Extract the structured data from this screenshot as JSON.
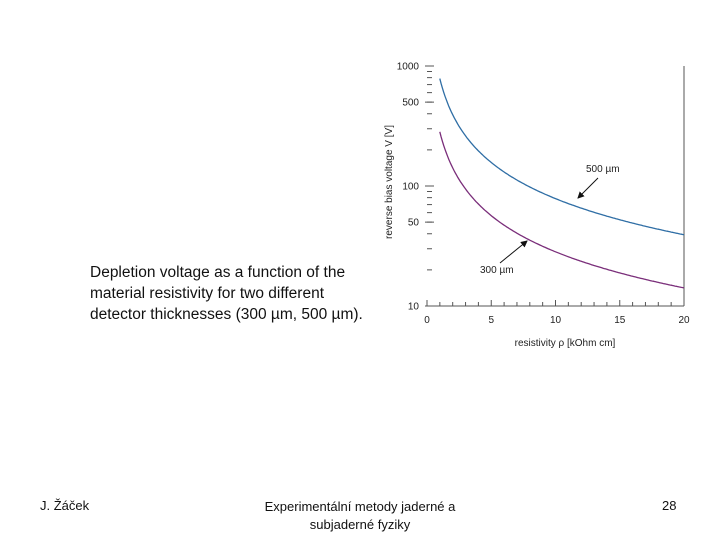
{
  "caption": {
    "line1": "Depletion voltage as a function of the",
    "line2": "material resistivity for two different",
    "line3": "detector thicknesses (300 µm, 500 µm)."
  },
  "footer": {
    "author": "J. Žáček",
    "title_line1": "Experimentální metody jaderné a",
    "title_line2": "subjaderné fyziky",
    "page": "28"
  },
  "chart_data": {
    "type": "line",
    "title": "",
    "xlabel": "resistivity ρ [kOhm cm]",
    "ylabel": "reverse bias voltage V [V]",
    "xlim": [
      0,
      20
    ],
    "ylim": [
      10,
      1000
    ],
    "yscale": "log",
    "xticks": [
      "0",
      "5",
      "10",
      "15",
      "20"
    ],
    "yticks": [
      "10",
      "50",
      "100",
      "500",
      "1000"
    ],
    "series": [
      {
        "name": "500 µm",
        "color": "#2f6ea5",
        "x": [
          1,
          2,
          3,
          4,
          5,
          6,
          8,
          10,
          12,
          14,
          16,
          18,
          20
        ],
        "y": [
          785,
          392,
          262,
          196,
          157,
          131,
          98,
          79,
          65,
          56,
          49,
          44,
          39
        ]
      },
      {
        "name": "300 µm",
        "color": "#7a2e7a",
        "x": [
          1,
          2,
          3,
          4,
          5,
          6,
          8,
          10,
          12,
          14,
          16,
          18,
          20
        ],
        "y": [
          283,
          141,
          94,
          71,
          57,
          47,
          35,
          28,
          24,
          20,
          18,
          16,
          14
        ]
      }
    ],
    "annotations": [
      {
        "text": "500 µm",
        "target_series": "500 µm"
      },
      {
        "text": "300 µm",
        "target_series": "300 µm"
      }
    ]
  }
}
